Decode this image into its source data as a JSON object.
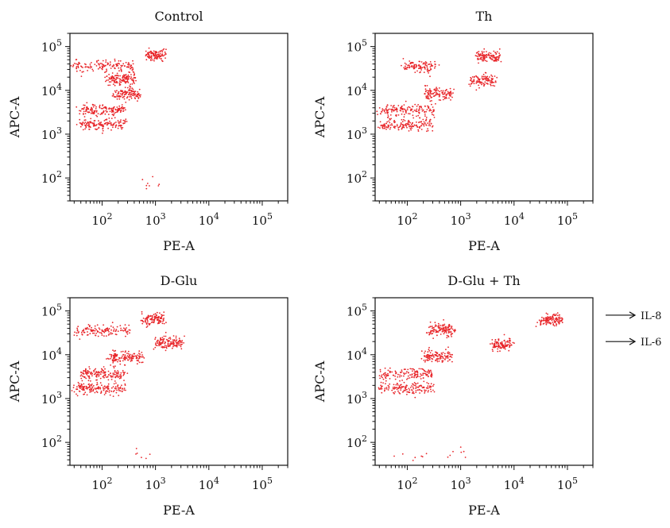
{
  "chart_data": [
    {
      "type": "scatter",
      "title": "Control",
      "xlabel": "PE-A",
      "ylabel": "APC-A",
      "xscale": "log",
      "yscale": "log",
      "xlim": [
        25,
        300000
      ],
      "ylim": [
        30,
        200000
      ],
      "x_ticks": [
        {
          "base": "10",
          "exp": "2",
          "value": 100
        },
        {
          "base": "10",
          "exp": "3",
          "value": 1000
        },
        {
          "base": "10",
          "exp": "4",
          "value": 10000
        },
        {
          "base": "10",
          "exp": "5",
          "value": 100000
        }
      ],
      "y_ticks": [
        {
          "base": "10",
          "exp": "2",
          "value": 100
        },
        {
          "base": "10",
          "exp": "3",
          "value": 1000
        },
        {
          "base": "10",
          "exp": "4",
          "value": 10000
        },
        {
          "base": "10",
          "exp": "5",
          "value": 100000
        }
      ],
      "point_color": "#e8262a",
      "grid": false,
      "clusters": [
        {
          "x_range": [
            30,
            400
          ],
          "y": 36000,
          "n": 140
        },
        {
          "x_range": [
            700,
            1500
          ],
          "y": 65000,
          "n": 110
        },
        {
          "x_range": [
            130,
            420
          ],
          "y": 18000,
          "n": 140
        },
        {
          "x_range": [
            170,
            550
          ],
          "y": 8500,
          "n": 120
        },
        {
          "x_range": [
            40,
            260
          ],
          "y": 3600,
          "n": 150
        },
        {
          "x_range": [
            40,
            270
          ],
          "y": 1700,
          "n": 150
        },
        {
          "x_range": [
            500,
            2500
          ],
          "y": 70,
          "n": 8
        }
      ]
    },
    {
      "type": "scatter",
      "title": "Th",
      "xlabel": "PE-A",
      "ylabel": "APC-A",
      "xscale": "log",
      "yscale": "log",
      "xlim": [
        25,
        300000
      ],
      "ylim": [
        30,
        200000
      ],
      "x_ticks": [
        {
          "base": "10",
          "exp": "2",
          "value": 100
        },
        {
          "base": "10",
          "exp": "3",
          "value": 1000
        },
        {
          "base": "10",
          "exp": "4",
          "value": 10000
        },
        {
          "base": "10",
          "exp": "5",
          "value": 100000
        }
      ],
      "y_ticks": [
        {
          "base": "10",
          "exp": "2",
          "value": 100
        },
        {
          "base": "10",
          "exp": "3",
          "value": 1000
        },
        {
          "base": "10",
          "exp": "4",
          "value": 10000
        },
        {
          "base": "10",
          "exp": "5",
          "value": 100000
        }
      ],
      "point_color": "#e8262a",
      "grid": false,
      "clusters": [
        {
          "x_range": [
            80,
            350
          ],
          "y": 35000,
          "n": 110
        },
        {
          "x_range": [
            2000,
            5500
          ],
          "y": 60000,
          "n": 120
        },
        {
          "x_range": [
            1500,
            4500
          ],
          "y": 17000,
          "n": 110
        },
        {
          "x_range": [
            200,
            700
          ],
          "y": 8500,
          "n": 120
        },
        {
          "x_range": [
            30,
            300
          ],
          "y": 3500,
          "n": 150
        },
        {
          "x_range": [
            30,
            300
          ],
          "y": 1600,
          "n": 160
        }
      ]
    },
    {
      "type": "scatter",
      "title": "D-Glu",
      "xlabel": "PE-A",
      "ylabel": "APC-A",
      "xscale": "log",
      "yscale": "log",
      "xlim": [
        25,
        300000
      ],
      "ylim": [
        30,
        200000
      ],
      "x_ticks": [
        {
          "base": "10",
          "exp": "2",
          "value": 100
        },
        {
          "base": "10",
          "exp": "3",
          "value": 1000
        },
        {
          "base": "10",
          "exp": "4",
          "value": 10000
        },
        {
          "base": "10",
          "exp": "5",
          "value": 100000
        }
      ],
      "y_ticks": [
        {
          "base": "10",
          "exp": "2",
          "value": 100
        },
        {
          "base": "10",
          "exp": "3",
          "value": 1000
        },
        {
          "base": "10",
          "exp": "4",
          "value": 10000
        },
        {
          "base": "10",
          "exp": "5",
          "value": 100000
        }
      ],
      "point_color": "#e8262a",
      "grid": false,
      "clusters": [
        {
          "x_range": [
            30,
            320
          ],
          "y": 36000,
          "n": 130
        },
        {
          "x_range": [
            550,
            1500
          ],
          "y": 65000,
          "n": 110
        },
        {
          "x_range": [
            1000,
            3000
          ],
          "y": 19000,
          "n": 140
        },
        {
          "x_range": [
            130,
            600
          ],
          "y": 8500,
          "n": 140
        },
        {
          "x_range": [
            40,
            260
          ],
          "y": 3700,
          "n": 150
        },
        {
          "x_range": [
            30,
            260
          ],
          "y": 1700,
          "n": 160
        },
        {
          "x_range": [
            300,
            800
          ],
          "y": 55,
          "n": 6
        }
      ]
    },
    {
      "type": "scatter",
      "title": "D-Glu + Th",
      "xlabel": "PE-A",
      "ylabel": "APC-A",
      "xscale": "log",
      "yscale": "log",
      "xlim": [
        25,
        300000
      ],
      "ylim": [
        30,
        200000
      ],
      "x_ticks": [
        {
          "base": "10",
          "exp": "2",
          "value": 100
        },
        {
          "base": "10",
          "exp": "3",
          "value": 1000
        },
        {
          "base": "10",
          "exp": "4",
          "value": 10000
        },
        {
          "base": "10",
          "exp": "5",
          "value": 100000
        }
      ],
      "y_ticks": [
        {
          "base": "10",
          "exp": "2",
          "value": 100
        },
        {
          "base": "10",
          "exp": "3",
          "value": 1000
        },
        {
          "base": "10",
          "exp": "4",
          "value": 10000
        },
        {
          "base": "10",
          "exp": "5",
          "value": 100000
        }
      ],
      "point_color": "#e8262a",
      "grid": false,
      "annotations": [
        {
          "text": "IL-8",
          "y": 80000
        },
        {
          "text": "IL-6",
          "y": 20000
        }
      ],
      "clusters": [
        {
          "x_range": [
            250,
            750
          ],
          "y": 36000,
          "n": 130
        },
        {
          "x_range": [
            30000,
            80000
          ],
          "y": 60000,
          "n": 120
        },
        {
          "x_range": [
            4000,
            8500
          ],
          "y": 17000,
          "n": 110
        },
        {
          "x_range": [
            200,
            700
          ],
          "y": 9000,
          "n": 120
        },
        {
          "x_range": [
            30,
            300
          ],
          "y": 3600,
          "n": 140
        },
        {
          "x_range": [
            30,
            300
          ],
          "y": 1700,
          "n": 150
        },
        {
          "x_range": [
            40,
            1500
          ],
          "y": 50,
          "n": 14
        }
      ]
    }
  ]
}
